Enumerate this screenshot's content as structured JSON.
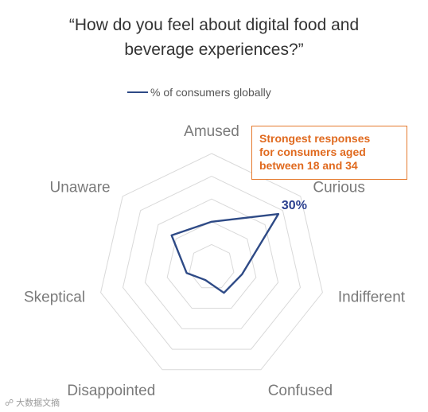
{
  "title_lines": [
    "“How do you feel about digital food and",
    "beverage experiences?”"
  ],
  "watermark": "大数据文摘",
  "callout": {
    "lines": [
      "Strongest responses",
      "for consumers aged",
      "between 18 and 34"
    ]
  },
  "colors": {
    "series": "#2e4a86",
    "grid": "#d9d9d9",
    "callout": "#e06a1f",
    "highlight": "#2a3f8f"
  },
  "chart_data": {
    "type": "radar",
    "categories": [
      "Amused",
      "Curious",
      "Indifferent",
      "Confused",
      "Disappointed",
      "Skeptical",
      "Unaware"
    ],
    "series": [
      {
        "name": "% of consumers globally",
        "values": [
          16,
          30,
          11,
          10,
          5,
          9,
          18
        ]
      }
    ],
    "rmax": 40,
    "rings": 5,
    "grid": true,
    "legend_position": "top",
    "data_labels": [
      {
        "category": "Curious",
        "text": "30%"
      }
    ]
  }
}
